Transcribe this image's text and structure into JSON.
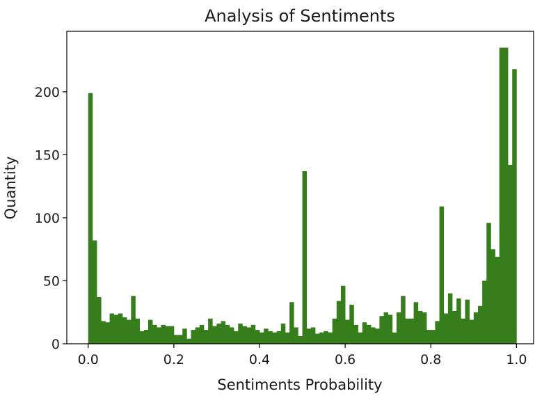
{
  "chart_data": {
    "type": "bar",
    "title": "Analysis of Sentiments",
    "xlabel": "Sentiments Probability",
    "ylabel": "Quantity",
    "xlim": [
      -0.05,
      1.04
    ],
    "ylim": [
      0,
      248
    ],
    "bin_start": 0.0,
    "bin_width": 0.01,
    "values": [
      199,
      82,
      37,
      18,
      17,
      24,
      23,
      24,
      21,
      19,
      38,
      20,
      10,
      11,
      19,
      15,
      13,
      15,
      14,
      14,
      7,
      7,
      12,
      4,
      11,
      13,
      15,
      11,
      20,
      14,
      16,
      18,
      15,
      13,
      10,
      16,
      14,
      13,
      15,
      11,
      9,
      12,
      10,
      9,
      10,
      16,
      9,
      33,
      13,
      6,
      137,
      12,
      13,
      8,
      9,
      10,
      9,
      20,
      34,
      46,
      19,
      31,
      15,
      9,
      17,
      15,
      13,
      12,
      22,
      25,
      23,
      9,
      25,
      38,
      20,
      20,
      33,
      26,
      25,
      11,
      11,
      18,
      109,
      24,
      40,
      26,
      36,
      20,
      35,
      19,
      25,
      30,
      50,
      96,
      75,
      69,
      235,
      235,
      142,
      218
    ],
    "x_ticks": [
      0.0,
      0.2,
      0.4,
      0.6,
      0.8,
      1.0
    ],
    "x_tick_labels": [
      "0.0",
      "0.2",
      "0.4",
      "0.6",
      "0.8",
      "1.0"
    ],
    "y_ticks": [
      0,
      50,
      100,
      150,
      200
    ],
    "y_tick_labels": [
      "0",
      "50",
      "100",
      "150",
      "200"
    ],
    "bar_color": "#367d1c",
    "grid": false,
    "legend": "none"
  }
}
